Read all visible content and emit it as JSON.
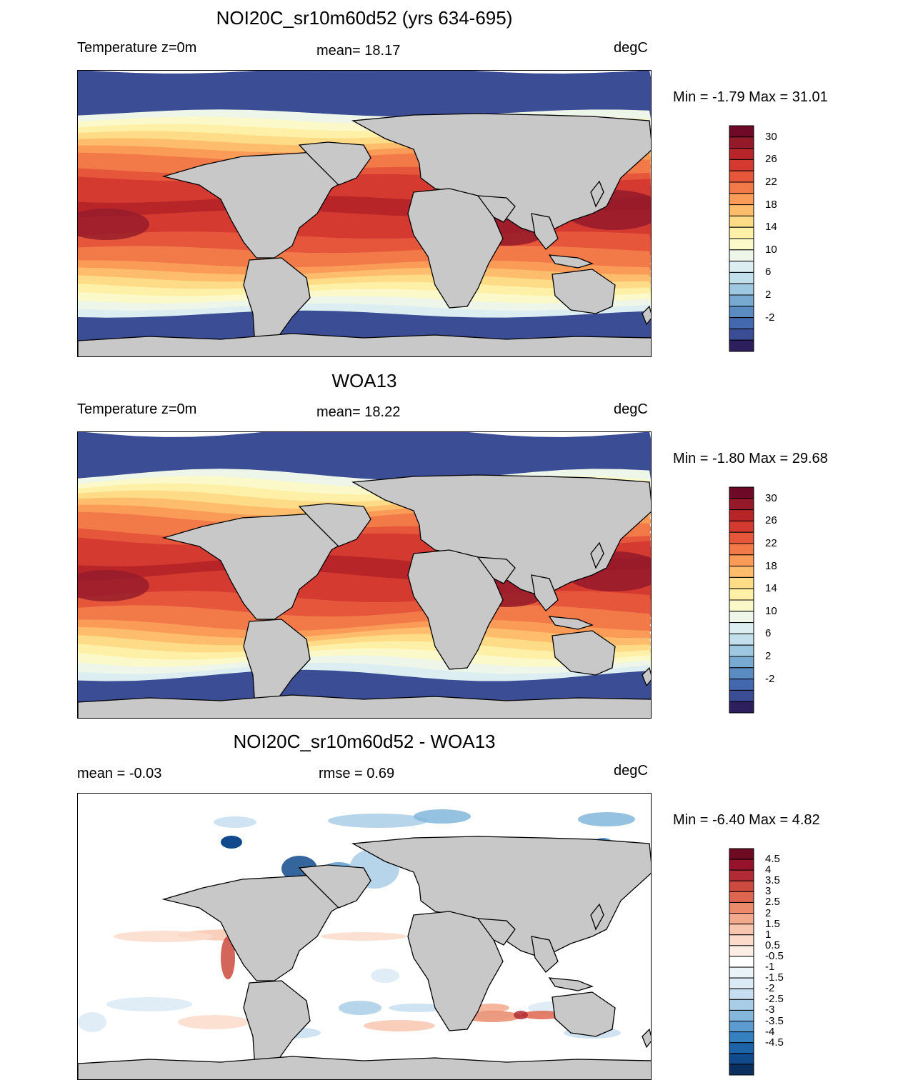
{
  "panels": [
    {
      "id": "model",
      "title": "NOI20C_sr10m60d52 (yrs 634-695)",
      "left_label": "Temperature z=0m",
      "center_label": "mean=  18.17",
      "units": "degC",
      "minmax": "Min =  -1.79 Max =  31.01",
      "colorbar": {
        "colors": [
          "#2d1e5e",
          "#3b4d94",
          "#4468ad",
          "#5a8cc2",
          "#78a9d1",
          "#9ec8e1",
          "#c2dfec",
          "#ddeef3",
          "#eef6e9",
          "#fbf9c9",
          "#fff0a8",
          "#fedb86",
          "#fdbd6c",
          "#fa9b57",
          "#f27a49",
          "#e5563a",
          "#d43a30",
          "#b72529",
          "#941a2a",
          "#6e0a27"
        ],
        "labels": [
          "30",
          "26",
          "22",
          "18",
          "14",
          "10",
          "6",
          "2",
          "-2"
        ]
      }
    },
    {
      "id": "obs",
      "title": "WOA13",
      "left_label": "Temperature z=0m",
      "center_label": "mean=  18.22",
      "units": "degC",
      "minmax": "Min =  -1.80 Max =  29.68",
      "colorbar": {
        "colors": [
          "#2d1e5e",
          "#3b4d94",
          "#4468ad",
          "#5a8cc2",
          "#78a9d1",
          "#9ec8e1",
          "#c2dfec",
          "#ddeef3",
          "#eef6e9",
          "#fbf9c9",
          "#fff0a8",
          "#fedb86",
          "#fdbd6c",
          "#fa9b57",
          "#f27a49",
          "#e5563a",
          "#d43a30",
          "#b72529",
          "#941a2a",
          "#6e0a27"
        ],
        "labels": [
          "30",
          "26",
          "22",
          "18",
          "14",
          "10",
          "6",
          "2",
          "-2"
        ]
      }
    },
    {
      "id": "diff",
      "title": "NOI20C_sr10m60d52 - WOA13",
      "left_label": "mean =  -0.03",
      "center_label": "rmse =   0.69",
      "units": "degC",
      "minmax": "Min =  -6.40 Max =   4.82",
      "colorbar": {
        "colors": [
          "#0b2f5e",
          "#104a8c",
          "#1d63a8",
          "#3580bf",
          "#5b9bcf",
          "#84b7dc",
          "#a9cde6",
          "#c7def0",
          "#dbeaf4",
          "#eaf3f8",
          "#ffffff",
          "#fdeee5",
          "#fbdccb",
          "#f8c6ae",
          "#f3a98c",
          "#eb8b6c",
          "#de6650",
          "#cc4a3e",
          "#b22a33",
          "#97122b",
          "#6e0a22"
        ],
        "labels": [
          "4.5",
          "4",
          "3.5",
          "3",
          "2.5",
          "2",
          "1.5",
          "1",
          "0.5",
          "-0.5",
          "-1",
          "-1.5",
          "-2",
          "-2.5",
          "-3",
          "-3.5",
          "-4",
          "-4.5"
        ]
      }
    }
  ],
  "land_color": "#c8c8c8"
}
